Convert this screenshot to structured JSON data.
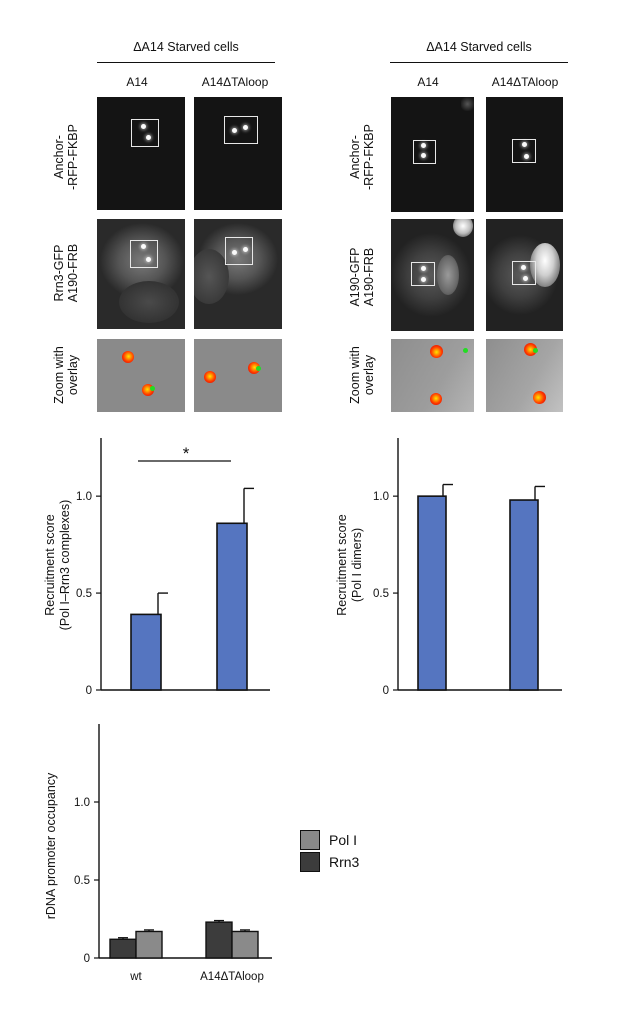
{
  "panel_a": {
    "header_left": "ΔA14 Starved cells",
    "header_right": "ΔA14 Starved cells",
    "col_left_1": "A14",
    "col_left_2": "A14ΔTAloop",
    "col_right_1": "A14",
    "col_right_2": "A14ΔTAloop",
    "left_rows": {
      "row1_line1": "Anchor-",
      "row1_line2": "-RFP-FKBP",
      "row2_line1": "Rrn3-GFP",
      "row2_line2": "A190-FRB",
      "row3_line1": "Zoom with",
      "row3_line2": "overlay"
    },
    "right_rows": {
      "row1_line1": "Anchor-",
      "row1_line2": "-RFP-FKBP",
      "row2_line1": "A190-GFP",
      "row2_line2": "A190-FRB",
      "row3_line1": "Zoom with",
      "row3_line2": "overlay"
    }
  },
  "chart_data": [
    {
      "type": "bar",
      "ylabel_line1": "Recruitment score",
      "ylabel_line2": "(Pol I–Rrn3 complexes)",
      "categories": [
        "A14",
        "A14ΔTAloop"
      ],
      "values": [
        0.39,
        0.86
      ],
      "errors": [
        0.11,
        0.18
      ],
      "ylim": [
        0,
        1.3
      ],
      "yticks": [
        "0",
        "0.5",
        "1.0"
      ],
      "ytick_values": [
        0,
        0.5,
        1.0
      ],
      "significance": "*",
      "bar_color": "#5575c0"
    },
    {
      "type": "bar",
      "ylabel_line1": "Recruitment score",
      "ylabel_line2": "(Pol I dimers)",
      "categories": [
        "A14",
        "A14ΔTAloop"
      ],
      "values": [
        1.0,
        0.98
      ],
      "errors": [
        0.06,
        0.07
      ],
      "ylim": [
        0,
        1.3
      ],
      "yticks": [
        "0",
        "0.5",
        "1.0"
      ],
      "ytick_values": [
        0,
        0.5,
        1.0
      ],
      "bar_color": "#5575c0"
    },
    {
      "type": "bar",
      "ylabel": "rDNA promoter occupancy",
      "categories": [
        "wt",
        "A14ΔTAloop"
      ],
      "xtick_labels": [
        "wt",
        "A14ΔTAloop"
      ],
      "series": [
        {
          "name": "Rrn3",
          "values": [
            0.12,
            0.23
          ],
          "errors": [
            0.01,
            0.01
          ],
          "color": "#3c3c3c"
        },
        {
          "name": "Pol I",
          "values": [
            0.17,
            0.17
          ],
          "errors": [
            0.01,
            0.01
          ],
          "color": "#8a8a8a"
        }
      ],
      "ylim": [
        0,
        1.5
      ],
      "yticks": [
        "0",
        "0.5",
        "1.0"
      ],
      "ytick_values": [
        0,
        0.5,
        1.0
      ],
      "legend_position": "right",
      "legend": [
        {
          "label": "Pol I",
          "color": "#8a8a8a"
        },
        {
          "label": "Rrn3",
          "color": "#3c3c3c"
        }
      ]
    }
  ]
}
